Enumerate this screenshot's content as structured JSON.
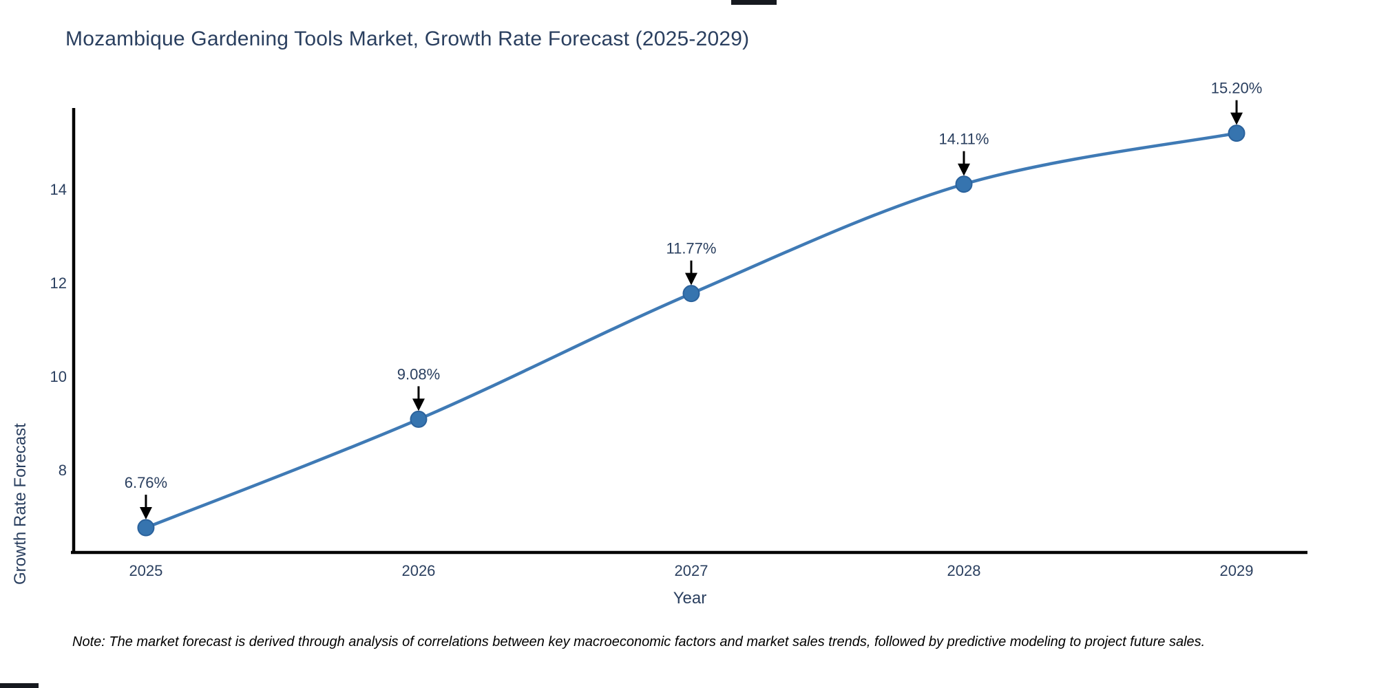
{
  "figure": {
    "title": "Mozambique Gardening Tools Market, Growth Rate Forecast (2025-2029)",
    "x_axis_title": "Year",
    "y_axis_title": "Growth Rate Forecast",
    "footnote": "Note: The market forecast is derived through analysis of correlations between key macroeconomic factors and market sales trends, followed by predictive modeling to project future sales."
  },
  "chart_data": {
    "type": "line",
    "title": "Mozambique Gardening Tools Market, Growth Rate Forecast (2025-2029)",
    "xlabel": "Year",
    "ylabel": "Growth Rate Forecast",
    "x": [
      2025,
      2026,
      2027,
      2028,
      2029
    ],
    "series": [
      {
        "name": "Growth Rate Forecast",
        "values": [
          6.76,
          9.08,
          11.77,
          14.11,
          15.2
        ]
      }
    ],
    "point_labels": [
      "6.76%",
      "9.08%",
      "11.77%",
      "14.11%",
      "15.20%"
    ],
    "xticks": [
      "2025",
      "2026",
      "2027",
      "2028",
      "2029"
    ],
    "yticks": [
      8,
      10,
      12,
      14
    ],
    "xlim": [
      2024.73,
      2029.26
    ],
    "ylim": [
      6.26,
      15.71
    ],
    "grid": false,
    "legend": false,
    "line_shape": "spline",
    "annotation_style": "label-above-with-down-arrow",
    "colors": {
      "line": "#3f7ab5",
      "marker_fill": "#3674af",
      "marker_edge": "#2b629c",
      "axis": "#000000",
      "text": "#2a3f5f",
      "annotation_text": "#2a3f5f",
      "annotation_arrow": "#000000",
      "footnote_text": "#000000",
      "background": "#ffffff"
    }
  }
}
